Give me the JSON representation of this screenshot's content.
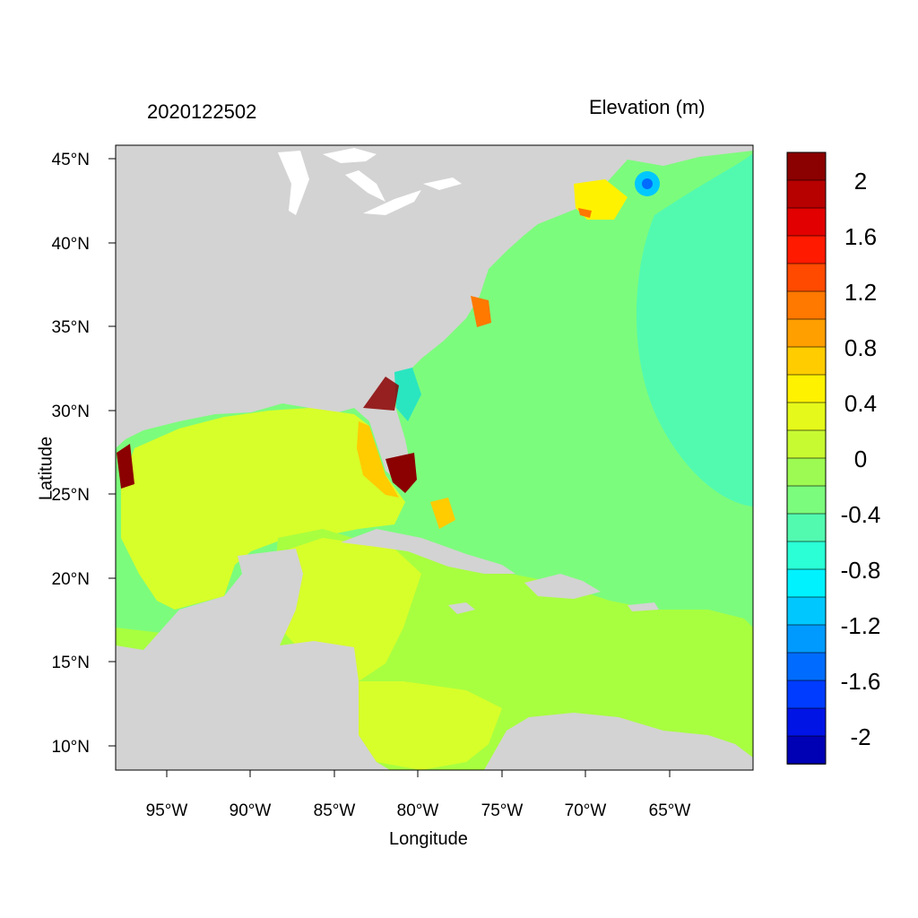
{
  "header": {
    "time_label": "2020122502",
    "variable_label": "Elevation (m)"
  },
  "axes": {
    "xlabel": "Longitude",
    "ylabel": "Latitude",
    "lon_ticks": [
      "95°W",
      "90°W",
      "85°W",
      "80°W",
      "75°W",
      "70°W",
      "65°W"
    ],
    "lat_ticks": [
      "45°N",
      "40°N",
      "35°N",
      "30°N",
      "25°N",
      "20°N",
      "15°N",
      "10°N"
    ]
  },
  "colorbar": {
    "labels": [
      "2",
      "1.6",
      "1.2",
      "0.8",
      "0.4",
      "0",
      "-0.4",
      "-0.8",
      "-1.2",
      "-1.6",
      "-2"
    ],
    "colors": [
      "#8b0000",
      "#b70000",
      "#e20000",
      "#ff1a00",
      "#ff4a00",
      "#ff7800",
      "#ff9f00",
      "#ffcc00",
      "#fff200",
      "#e5fa1a",
      "#c8fa32",
      "#9dfa52",
      "#7cfc7c",
      "#52fab0",
      "#2affd6",
      "#00f2ff",
      "#00c8ff",
      "#009aff",
      "#006cff",
      "#003cff",
      "#0014e6",
      "#0000b4"
    ]
  },
  "map": {
    "land_color": "#d3d3d3",
    "atlantic_color": "#7cfc7c",
    "gulf_color": "#d7ff2a",
    "caribbean_color": "#a8ff40",
    "high_surge_color": "#8b0000",
    "low_water_color": "#2ae6c0"
  }
}
